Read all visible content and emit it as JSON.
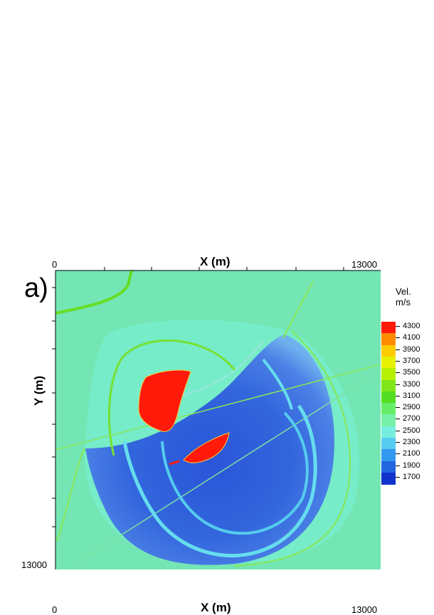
{
  "panel_label": "a)",
  "top_axis": {
    "title": "X (m)",
    "min_label": "0",
    "max_label": "13000"
  },
  "left_axis": {
    "title": "Y (m)",
    "mid_label": "Y (m)",
    "max_label": "13000"
  },
  "bottom_axis": {
    "title": "X (m)",
    "min_label": "0",
    "max_label": "13000"
  },
  "legend": {
    "title_line1": "Vel.",
    "title_line2": "m/s",
    "entries": [
      "4300",
      "4100",
      "3900",
      "3700",
      "3500",
      "3300",
      "3100",
      "2900",
      "2700",
      "2500",
      "2300",
      "2100",
      "1900",
      "1700"
    ],
    "colors": [
      "#ff1a0a",
      "#ff8c00",
      "#ffcc00",
      "#e6f000",
      "#b4f000",
      "#80e61a",
      "#55dd22",
      "#66ee66",
      "#77f0a8",
      "#77eedd",
      "#55ccf0",
      "#3399f0",
      "#2266e0",
      "#1133cc"
    ]
  },
  "chart_data": {
    "type": "heatmap",
    "title": "",
    "xlabel": "X (m)",
    "ylabel": "Y (m)",
    "xlim": [
      0,
      13000
    ],
    "ylim": [
      13000,
      0
    ],
    "colorbar_label": "Vel. m/s",
    "colorbar_ticks": [
      4300,
      4100,
      3900,
      3700,
      3500,
      3300,
      3100,
      2900,
      2700,
      2500,
      2300,
      2100,
      1900,
      1700
    ],
    "background_velocity": 2600,
    "basin_velocity": 1800,
    "salt_body_velocity": 4300
  }
}
